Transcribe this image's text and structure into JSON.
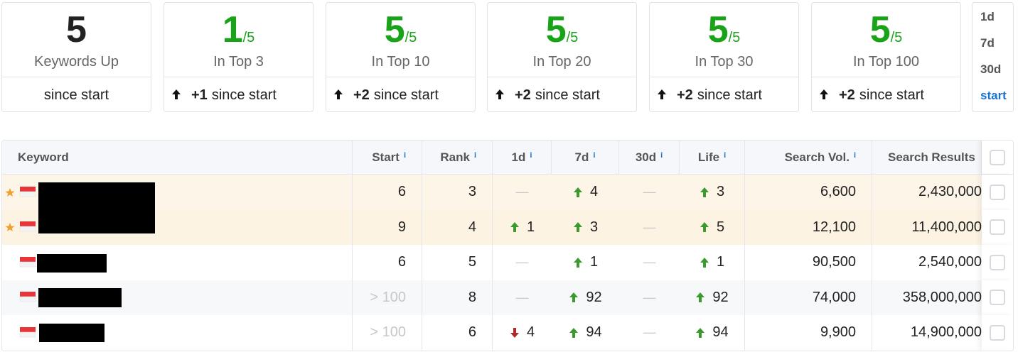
{
  "summary": [
    {
      "value": "5",
      "label": "Keywords Up",
      "change": "since start"
    },
    {
      "value": "1",
      "total": "/5",
      "label": "In Top 3",
      "delta": "+1",
      "change": "since start"
    },
    {
      "value": "5",
      "total": "/5",
      "label": "In Top 10",
      "delta": "+2",
      "change": "since start"
    },
    {
      "value": "5",
      "total": "/5",
      "label": "In Top 20",
      "delta": "+2",
      "change": "since start"
    },
    {
      "value": "5",
      "total": "/5",
      "label": "In Top 30",
      "delta": "+2",
      "change": "since start"
    },
    {
      "value": "5",
      "total": "/5",
      "label": "In Top 100",
      "delta": "+2",
      "change": "since start"
    }
  ],
  "periods": {
    "options": [
      "1d",
      "7d",
      "30d",
      "start"
    ],
    "selected": 3
  },
  "table": {
    "info_icon": "i",
    "empty": "—",
    "columns": [
      {
        "label": "Keyword"
      },
      {
        "label": "Start",
        "info": true
      },
      {
        "label": "Rank",
        "info": true
      },
      {
        "label": "1d",
        "info": true
      },
      {
        "label": "7d",
        "info": true
      },
      {
        "label": "30d",
        "info": true
      },
      {
        "label": "Life",
        "info": true
      },
      {
        "label": "Search Vol.",
        "info": true
      },
      {
        "label": "Search Results"
      }
    ],
    "rows": [
      {
        "starred": true,
        "start": "6",
        "rank": "3",
        "d1": null,
        "d7": {
          "dir": "up",
          "value": "4"
        },
        "d30": null,
        "life": {
          "dir": "up",
          "value": "3"
        },
        "search_vol": "6,600",
        "search_results": "2,430,000"
      },
      {
        "starred": true,
        "start": "9",
        "rank": "4",
        "d1": {
          "dir": "up",
          "value": "1"
        },
        "d7": {
          "dir": "up",
          "value": "3"
        },
        "d30": null,
        "life": {
          "dir": "up",
          "value": "5"
        },
        "search_vol": "12,100",
        "search_results": "11,400,000"
      },
      {
        "starred": false,
        "start": "6",
        "rank": "5",
        "d1": null,
        "d7": {
          "dir": "up",
          "value": "1"
        },
        "d30": null,
        "life": {
          "dir": "up",
          "value": "1"
        },
        "search_vol": "90,500",
        "search_results": "2,540,000"
      },
      {
        "starred": false,
        "start": "> 100",
        "rank": "8",
        "d1": null,
        "d7": {
          "dir": "up",
          "value": "92"
        },
        "d30": null,
        "life": {
          "dir": "up",
          "value": "92"
        },
        "search_vol": "74,000",
        "search_results": "358,000,000"
      },
      {
        "starred": false,
        "start": "> 100",
        "rank": "6",
        "d1": {
          "dir": "down",
          "value": "4"
        },
        "d7": {
          "dir": "up",
          "value": "94"
        },
        "d30": null,
        "life": {
          "dir": "up",
          "value": "94"
        },
        "search_vol": "9,900",
        "search_results": "14,900,000"
      }
    ]
  }
}
